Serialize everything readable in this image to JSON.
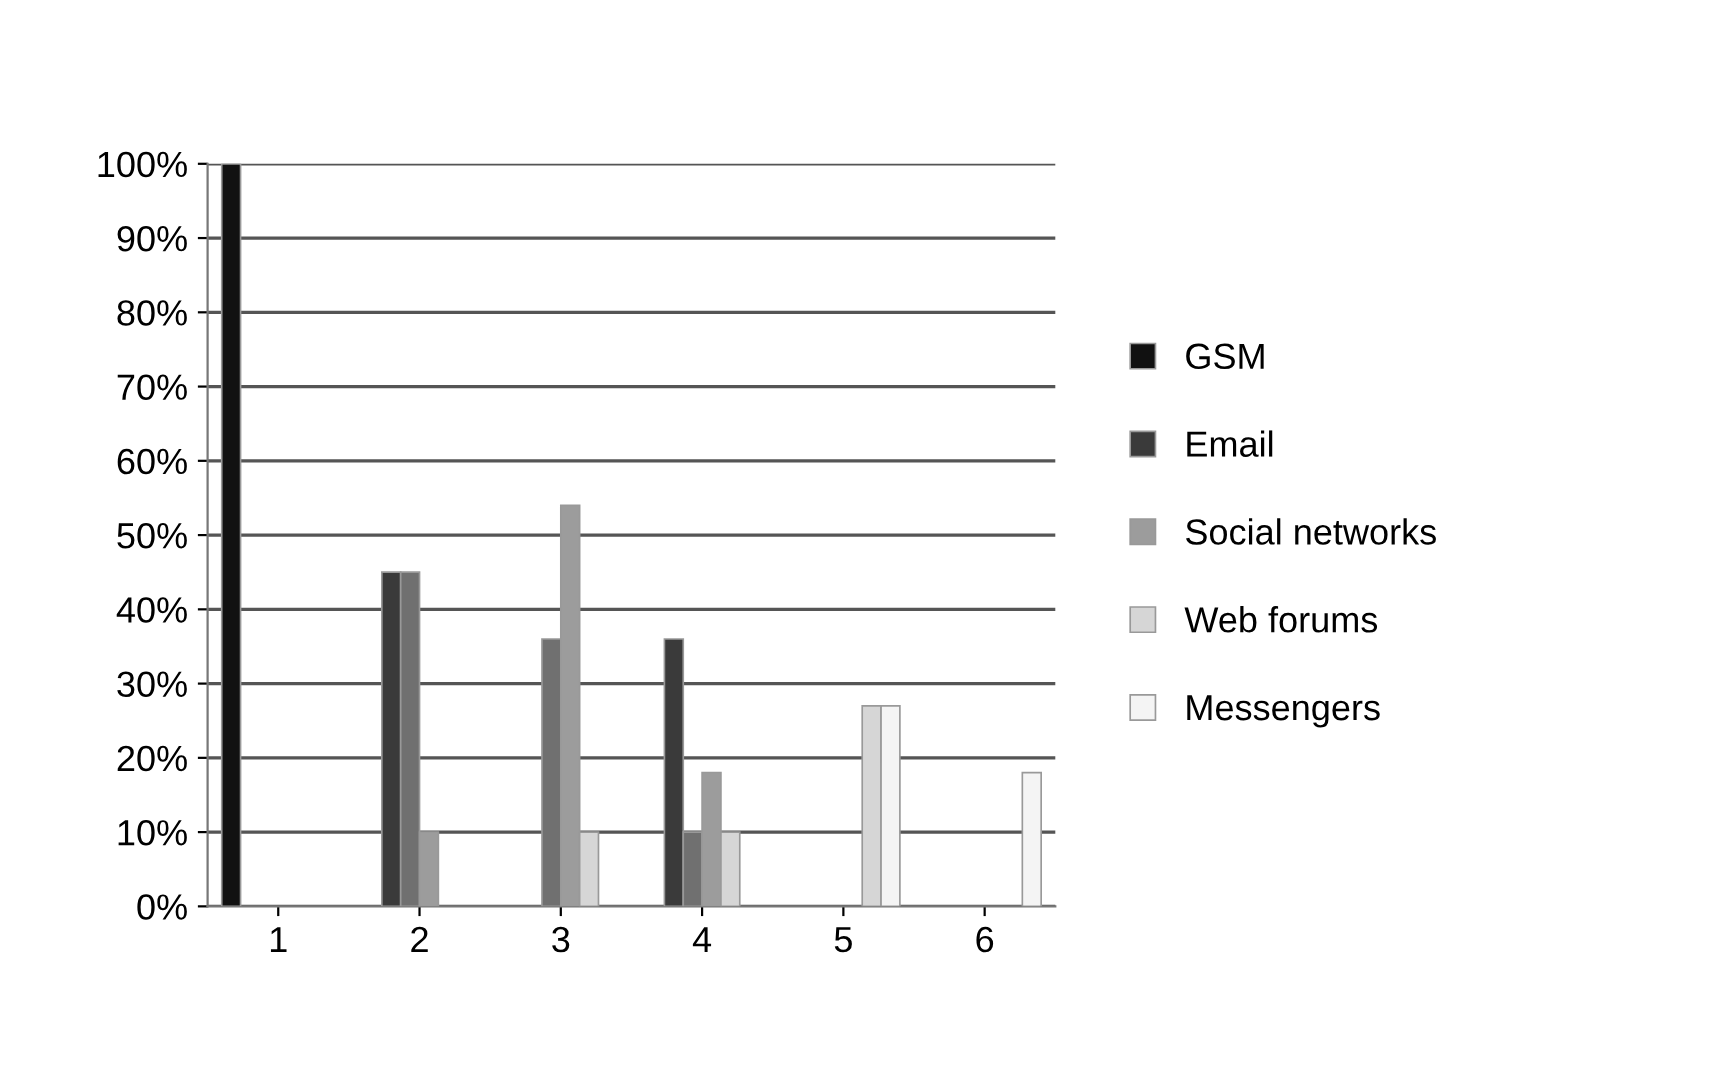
{
  "chart_data": {
    "type": "bar",
    "categories": [
      "1",
      "2",
      "3",
      "4",
      "5",
      "6"
    ],
    "series": [
      {
        "name": "GSM",
        "color": "#111111",
        "values": [
          100,
          null,
          null,
          null,
          null,
          null
        ]
      },
      {
        "name": "Email",
        "color": "#3a3a3a",
        "values": [
          null,
          45,
          null,
          36,
          null,
          null
        ]
      },
      {
        "color": "#707070",
        "values": [
          null,
          45,
          36,
          10,
          null,
          null
        ]
      },
      {
        "name": "Social networks",
        "color": "#9c9c9c",
        "values": [
          null,
          10,
          54,
          18,
          null,
          null
        ]
      },
      {
        "name": "Web forums",
        "color": "#d6d6d6",
        "values": [
          null,
          null,
          10,
          10,
          27,
          null
        ]
      },
      {
        "name": "Messengers",
        "color": "#f4f4f4",
        "values": [
          null,
          null,
          null,
          null,
          27,
          18
        ]
      }
    ],
    "ylim": [
      0,
      100
    ],
    "yticks": [
      {
        "value": 0,
        "label": "0%"
      },
      {
        "value": 10,
        "label": "10%"
      },
      {
        "value": 20,
        "label": "20%"
      },
      {
        "value": 30,
        "label": "30%"
      },
      {
        "value": 40,
        "label": "40%"
      },
      {
        "value": 50,
        "label": "50%"
      },
      {
        "value": 60,
        "label": "60%"
      },
      {
        "value": 70,
        "label": "70%"
      },
      {
        "value": 80,
        "label": "80%"
      },
      {
        "value": 90,
        "label": "90%"
      },
      {
        "value": 100,
        "label": "100%"
      }
    ],
    "grid": "y",
    "legend": "right"
  }
}
